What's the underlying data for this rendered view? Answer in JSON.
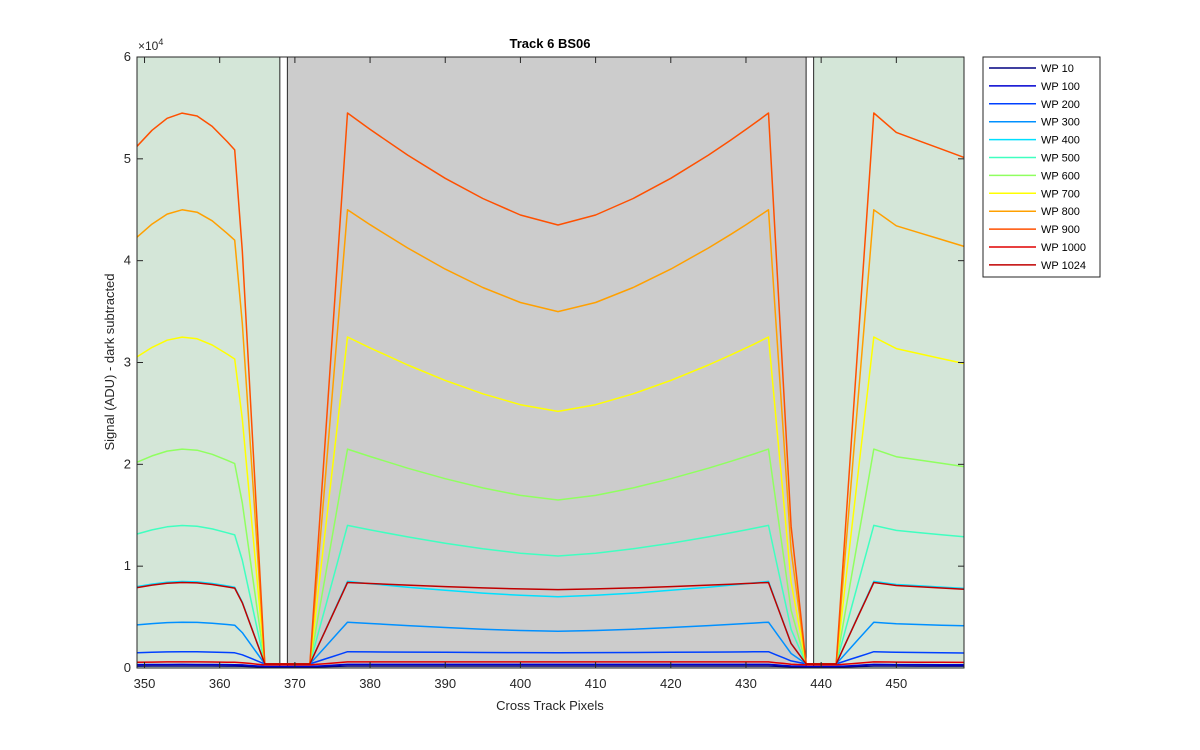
{
  "chart_data": {
    "type": "line",
    "title": "Track 6  BS06",
    "xlabel": "Cross Track Pixels",
    "ylabel": "Signal (ADU) - dark subtracted",
    "xlim": [
      349,
      459
    ],
    "ylim": [
      0,
      60000
    ],
    "y_multiplier": "×10",
    "y_multiplier_exp": "4",
    "x_ticks": [
      350,
      360,
      370,
      380,
      390,
      400,
      410,
      420,
      430,
      440,
      450
    ],
    "y_ticks": [
      0,
      10000,
      20000,
      30000,
      40000,
      50000,
      60000
    ],
    "y_tick_labels": [
      "0",
      "1",
      "2",
      "3",
      "4",
      "5",
      "6"
    ],
    "grid": false,
    "legend_position": "outside top-right",
    "shaded_regions": [
      {
        "x": [
          349,
          368
        ],
        "color": "#d4e6d8"
      },
      {
        "x": [
          369,
          438
        ],
        "color": "#cccccc"
      },
      {
        "x": [
          439,
          459
        ],
        "color": "#d4e6d8"
      }
    ],
    "boundary_columns": [
      368,
      438
    ],
    "x_points": [
      349,
      351,
      353,
      355,
      357,
      359,
      361,
      362,
      363,
      364,
      365,
      366,
      368,
      370,
      372,
      373,
      374,
      375,
      376,
      377,
      380,
      385,
      390,
      395,
      400,
      405,
      410,
      415,
      420,
      425,
      428,
      430,
      431,
      432,
      433,
      434,
      435,
      436,
      438,
      440,
      442,
      443,
      444,
      445,
      446,
      447,
      450,
      453,
      456,
      459
    ],
    "series": [
      {
        "name": "WP 10",
        "color": "#000080",
        "shape": "flat",
        "level": 200,
        "edge": 200,
        "floor": 100
      },
      {
        "name": "WP 100",
        "color": "#0000d0",
        "shape": "flat",
        "level": 350,
        "edge": 350,
        "floor": 150
      },
      {
        "name": "WP 200",
        "color": "#0040ff",
        "shape": "dip",
        "level": 1500,
        "edge": 1600,
        "floor": 400
      },
      {
        "name": "WP 300",
        "color": "#0090ff",
        "shape": "dip",
        "level": 3600,
        "edge": 4500,
        "floor": 400
      },
      {
        "name": "WP 400",
        "color": "#00e0ff",
        "shape": "dip",
        "level": 7000,
        "edge": 8500,
        "floor": 400
      },
      {
        "name": "WP 500",
        "color": "#40ffc0",
        "shape": "dip",
        "level": 11000,
        "edge": 14000,
        "floor": 400
      },
      {
        "name": "WP 600",
        "color": "#90ff60",
        "shape": "dip",
        "level": 16500,
        "edge": 21500,
        "floor": 400
      },
      {
        "name": "WP 700",
        "color": "#ffff00",
        "shape": "dip",
        "level": 25200,
        "edge": 32500,
        "floor": 400
      },
      {
        "name": "WP 800",
        "color": "#ffa000",
        "shape": "dip",
        "level": 35000,
        "edge": 45000,
        "floor": 400
      },
      {
        "name": "WP 900",
        "color": "#ff5000",
        "shape": "dip",
        "level": 43500,
        "edge": 54500,
        "floor": 400
      },
      {
        "name": "WP 1000",
        "color": "#e00000",
        "shape": "flat",
        "level": 600,
        "edge": 600,
        "floor": 300
      },
      {
        "name": "WP 1024",
        "color": "#c00000",
        "shape": "flat",
        "level": 7700,
        "edge": 8400,
        "floor": 400
      }
    ]
  }
}
